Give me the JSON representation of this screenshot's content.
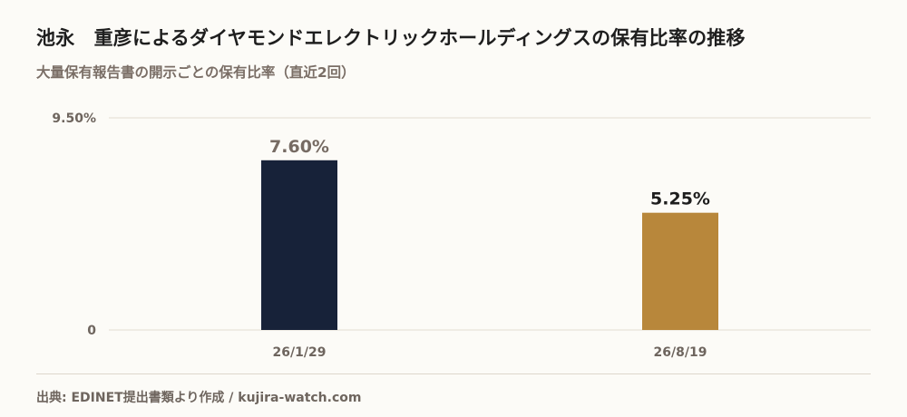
{
  "header": {
    "title": "池永　重彦によるダイヤモンドエレクトリックホールディングスの保有比率の推移",
    "subtitle": "大量保有報告書の開示ごとの保有比率（直近2回）"
  },
  "footer": {
    "source": "出典: EDINET提出書類より作成 / kujira-watch.com"
  },
  "colors": {
    "bar_first": "#172239",
    "bar_second": "#b8873b",
    "label_first": "#766b63",
    "label_second": "#1e1e1e",
    "grid": "#e2ddd0",
    "axis_text": "#6e655e"
  },
  "chart_data": {
    "type": "bar",
    "title": "池永　重彦によるダイヤモンドエレクトリックホールディングスの保有比率の推移",
    "subtitle": "大量保有報告書の開示ごとの保有比率（直近2回）",
    "categories": [
      "26/1/29",
      "26/8/19"
    ],
    "values": [
      7.6,
      5.25
    ],
    "value_labels": [
      "7.60%",
      "5.25%"
    ],
    "ylim": [
      0,
      9.5
    ],
    "ytick_labels": [
      "0",
      "9.50%"
    ],
    "xlabel": "",
    "ylabel": "",
    "grid": true,
    "legend": "none"
  }
}
